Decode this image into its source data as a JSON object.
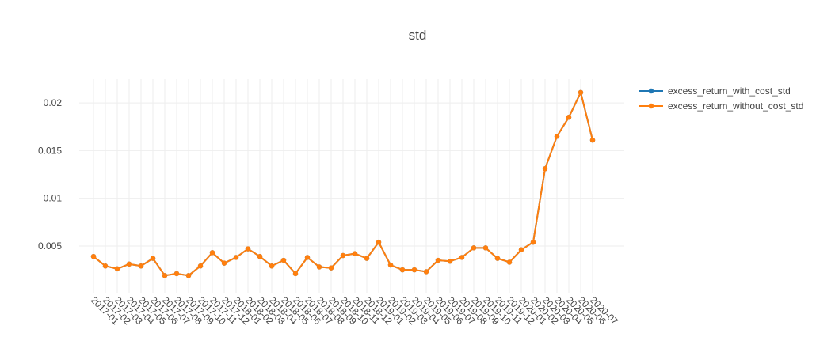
{
  "chart_data": {
    "type": "line",
    "title": "std",
    "xlabel": "",
    "ylabel": "",
    "ylim": [
      0.0001,
      0.0225
    ],
    "yticks": [
      0.005,
      0.01,
      0.015,
      0.02
    ],
    "ytick_labels": [
      "0.005",
      "0.01",
      "0.015",
      "0.02"
    ],
    "grid": true,
    "legend_position": "top-right",
    "categories": [
      "2017-01",
      "2017-02",
      "2017-03",
      "2017-04",
      "2017-05",
      "2017-06",
      "2017-07",
      "2017-08",
      "2017-09",
      "2017-10",
      "2017-11",
      "2017-12",
      "2018-01",
      "2018-02",
      "2018-03",
      "2018-04",
      "2018-05",
      "2018-06",
      "2018-07",
      "2018-08",
      "2018-09",
      "2018-10",
      "2018-11",
      "2018-12",
      "2019-01",
      "2019-02",
      "2019-03",
      "2019-04",
      "2019-05",
      "2019-06",
      "2019-07",
      "2019-08",
      "2019-09",
      "2019-10",
      "2019-11",
      "2019-12",
      "2020-01",
      "2020-02",
      "2020-03",
      "2020-04",
      "2020-05",
      "2020-06",
      "2020-07"
    ],
    "series": [
      {
        "name": "excess_return_with_cost_std",
        "color": "#1f77b4",
        "values": [
          0.0039,
          0.0029,
          0.0026,
          0.0031,
          0.0029,
          0.0037,
          0.0019,
          0.0021,
          0.0019,
          0.0029,
          0.0043,
          0.0032,
          0.0038,
          0.0047,
          0.0039,
          0.0029,
          0.0035,
          0.0021,
          0.0038,
          0.0028,
          0.0027,
          0.004,
          0.0042,
          0.0037,
          0.0054,
          0.003,
          0.0025,
          0.0025,
          0.0023,
          0.0035,
          0.0034,
          0.0038,
          0.0048,
          0.0048,
          0.0037,
          0.0033,
          0.0046,
          0.0054,
          0.0131,
          0.0165,
          0.0185,
          0.0211,
          0.0161
        ]
      },
      {
        "name": "excess_return_without_cost_std",
        "color": "#ff7f0e",
        "values": [
          0.0039,
          0.0029,
          0.0026,
          0.0031,
          0.0029,
          0.0037,
          0.0019,
          0.0021,
          0.0019,
          0.0029,
          0.0043,
          0.0032,
          0.0038,
          0.0047,
          0.0039,
          0.0029,
          0.0035,
          0.0021,
          0.0038,
          0.0028,
          0.0027,
          0.004,
          0.0042,
          0.0037,
          0.0054,
          0.003,
          0.0025,
          0.0025,
          0.0023,
          0.0035,
          0.0034,
          0.0038,
          0.0048,
          0.0048,
          0.0037,
          0.0033,
          0.0046,
          0.0054,
          0.0131,
          0.0165,
          0.0185,
          0.0211,
          0.0161
        ]
      }
    ]
  }
}
